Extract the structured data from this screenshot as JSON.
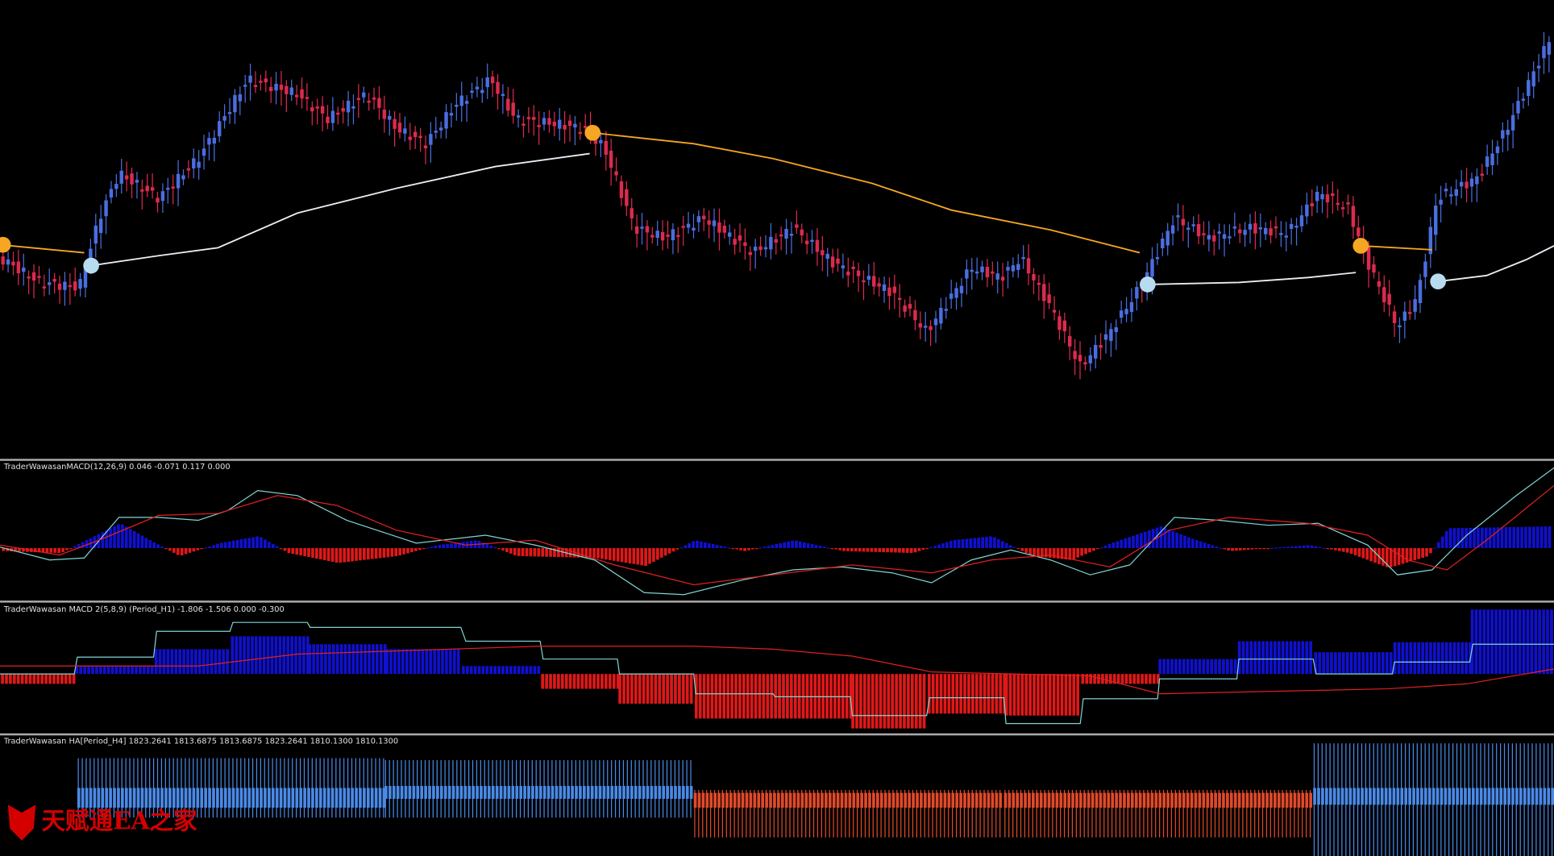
{
  "panels": [
    {
      "label": "TraderWawasanMACD(12,26,9) 0.046 -0.071 0.117 0.000"
    },
    {
      "label": "TraderWawasan MACD 2(5,8,9) (Period_H1) -1.806 -1.506 0.000 -0.300"
    },
    {
      "label": "TraderWawasan HA[Period_H4] 1823.2641 1813.6875 1813.6875 1823.2641 1810.1300 1810.1300"
    }
  ],
  "watermark": "天赋通EA之家"
}
